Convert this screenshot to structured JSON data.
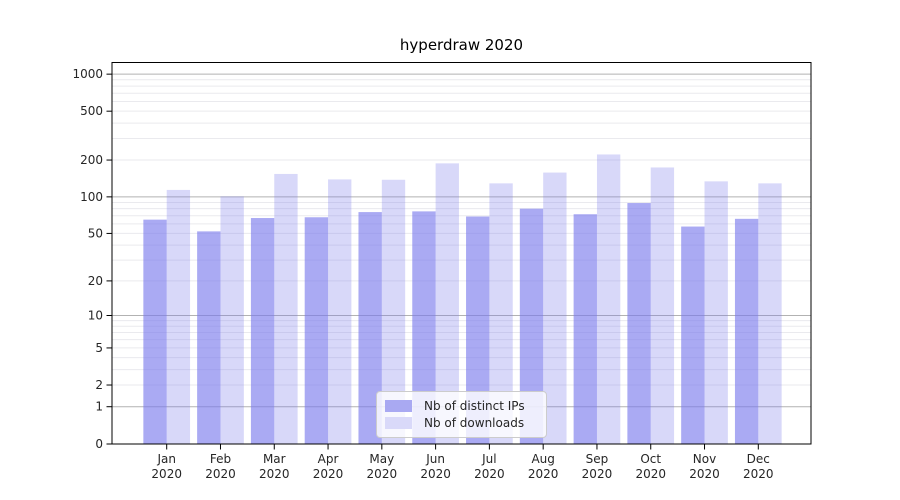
{
  "figure": {
    "title": "hyperdraw 2020",
    "background": "#ffffff"
  },
  "chart_data": {
    "type": "bar",
    "title": "hyperdraw 2020",
    "categories": [
      "Jan 2020",
      "Feb 2020",
      "Mar 2020",
      "Apr 2020",
      "May 2020",
      "Jun 2020",
      "Jul 2020",
      "Aug 2020",
      "Sep 2020",
      "Oct 2020",
      "Nov 2020",
      "Dec 2020"
    ],
    "month_labels": [
      "Jan",
      "Feb",
      "Mar",
      "Apr",
      "May",
      "Jun",
      "Jul",
      "Aug",
      "Sep",
      "Oct",
      "Nov",
      "Dec"
    ],
    "year_label": "2020",
    "series": [
      {
        "name": "Nb of distinct IPs",
        "base_color": "#7878ec",
        "opacity": 0.63,
        "swatch_color": "#a9a9f2",
        "values": [
          65,
          52,
          67,
          68,
          75,
          76,
          69,
          80,
          72,
          89,
          57,
          66
        ]
      },
      {
        "name": "Nb of downloads",
        "base_color": "#7878ec",
        "opacity": 0.29,
        "swatch_color": "#d9d9f9",
        "values": [
          114,
          101,
          154,
          139,
          138,
          188,
          129,
          158,
          222,
          174,
          134,
          129
        ]
      }
    ],
    "xlabel": "",
    "ylabel": "",
    "yscale": "log1p",
    "yticks": [
      0,
      1,
      2,
      5,
      10,
      20,
      50,
      100,
      200,
      500,
      1000
    ],
    "minor_grid_values": [
      3,
      4,
      6,
      7,
      8,
      9,
      30,
      40,
      60,
      70,
      80,
      90,
      300,
      400,
      600,
      700,
      800,
      900
    ],
    "major_grid_values": [
      1,
      10,
      100,
      1000
    ],
    "ylim": [
      0,
      1200
    ],
    "grid": true,
    "legend_position": "lower-center",
    "colors": {
      "major_grid": "#b2b2b2",
      "minor_grid": "#eaeaee",
      "axis": "#000000",
      "tick_text": "#262626"
    }
  }
}
